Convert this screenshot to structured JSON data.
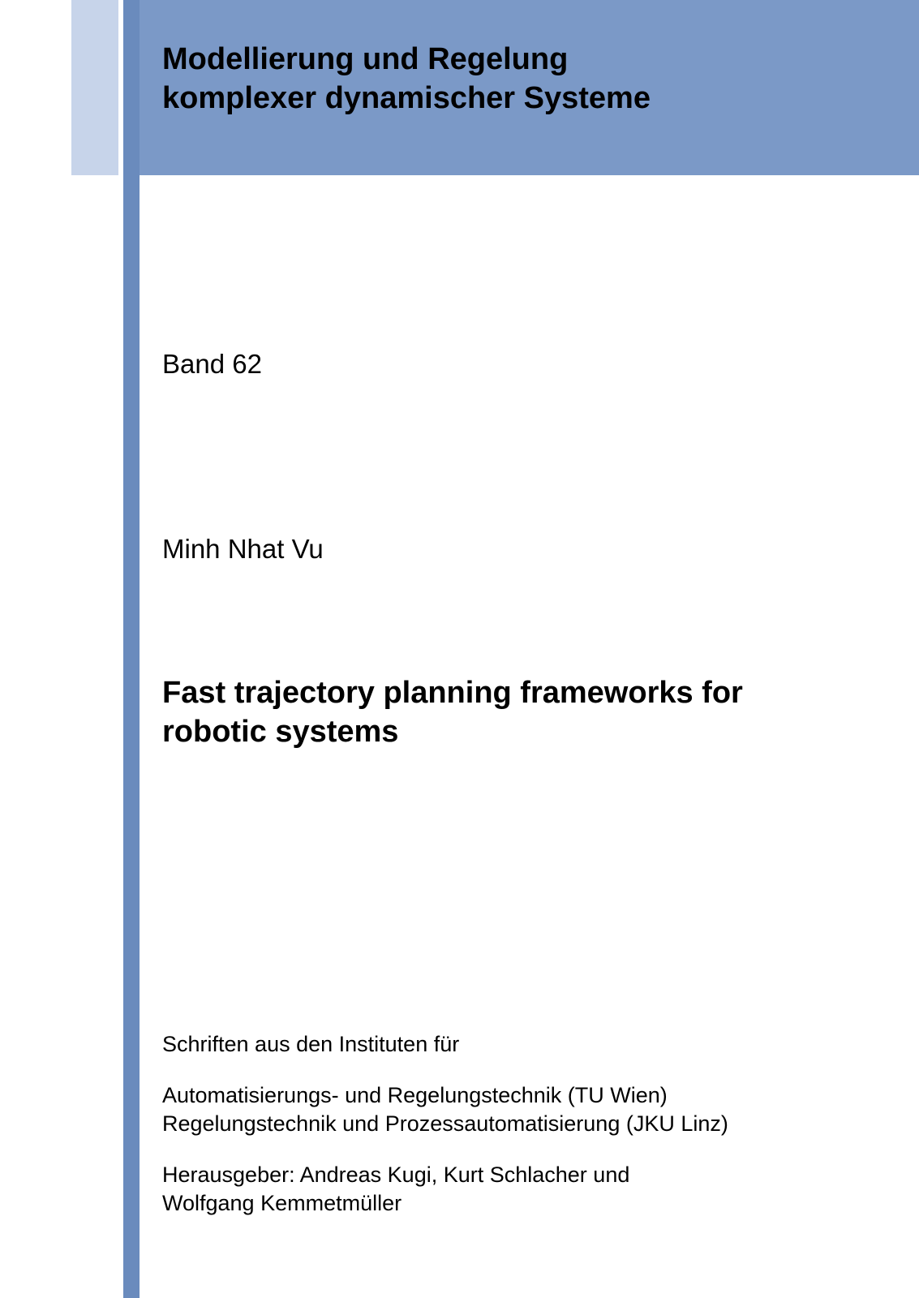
{
  "colors": {
    "light_bar": "#c7d4ea",
    "dark_bar": "#6a8bbd",
    "header_band": "#7b99c7",
    "page_bg": "#ffffff",
    "text": "#000000"
  },
  "typography": {
    "series_title_fontsize": 38,
    "series_title_weight": "bold",
    "body_fontsize": 33,
    "title_fontsize": 38,
    "title_weight": "bold",
    "footer_fontsize": 27,
    "font_family": "Arial"
  },
  "header": {
    "series_title_line1": "Modellierung und Regelung",
    "series_title_line2": "komplexer dynamischer Systeme"
  },
  "body": {
    "volume": "Band 62",
    "author": "Minh Nhat Vu",
    "title_line1": "Fast trajectory planning frameworks for",
    "title_line2": "robotic systems"
  },
  "footer": {
    "intro": "Schriften aus den Instituten für",
    "institute1": "Automatisierungs- und Regelungstechnik (TU Wien)",
    "institute2": "Regelungstechnik und Prozessautomatisierung (JKU Linz)",
    "editors_line1": "Herausgeber: Andreas Kugi, Kurt Schlacher und",
    "editors_line2": "Wolfgang Kemmetmüller"
  }
}
